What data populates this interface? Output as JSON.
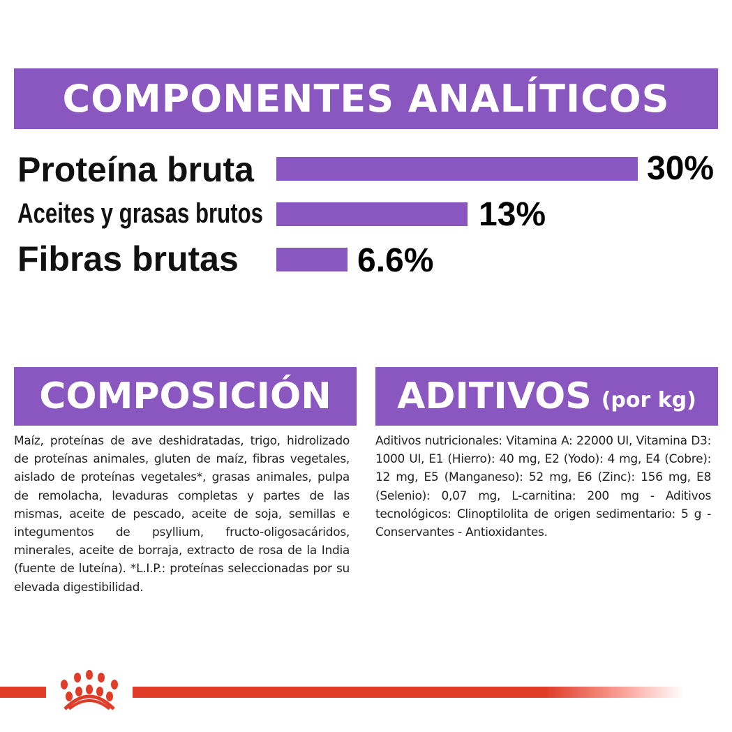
{
  "header": {
    "title": "COMPONENTES ANALÍTICOS"
  },
  "analytics": [
    {
      "label": "Proteína bruta",
      "value": "30%",
      "percent": 30
    },
    {
      "label": "Aceites y grasas brutos",
      "value": "13%",
      "percent": 13
    },
    {
      "label": "Fibras brutas",
      "value": "6.6%",
      "percent": 6.6
    }
  ],
  "composition": {
    "title": "COMPOSICIÓN",
    "text": "Maíz, proteínas de ave deshidratadas, trigo, hidrolizado de proteínas animales, gluten de maíz, fibras vegetales, aislado de proteínas vegetales*, grasas animales, pulpa de remolacha, levaduras completas y partes de las mismas, aceite de pescado, aceite de soja, semillas e integumentos de psyllium, fructo-oligosacáridos, minerales, aceite de borraja, extracto de rosa de la India (fuente de luteína). *L.I.P.: proteínas seleccionadas por su elevada digestibilidad."
  },
  "additives": {
    "title": "ADITIVOS",
    "unit": "(por kg)",
    "text": "Aditivos nutricionales: Vitamina A: 22000 UI, Vitamina D3: 1000 UI, E1 (Hierro): 40 mg, E2 (Yodo): 4 mg, E4 (Cobre): 12 mg, E5 (Manganeso): 52 mg, E6 (Zinc): 156 mg, E8 (Selenio): 0,07 mg, L-carnitina: 200 mg - Aditivos tecnológicos: Clinoptilolita de origen sedimentario: 5 g - Conservantes - Antioxidantes."
  },
  "colors": {
    "accent": "#8a56c0",
    "brand_red": "#e03c28"
  },
  "footer": {
    "logo_icon": "royal-canin-crown-icon"
  }
}
